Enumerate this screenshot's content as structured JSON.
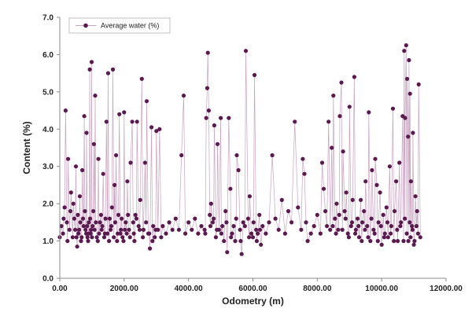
{
  "colors": {
    "series": "#5b1a4f",
    "series_line": "#c9a3c1",
    "axis": "#8c8c8c",
    "text": "#222222"
  },
  "chart_data": {
    "type": "scatter",
    "title": "",
    "xlabel": "Odometry (m)",
    "ylabel": "Content (%)",
    "xlim": [
      0,
      12000
    ],
    "ylim": [
      0,
      7
    ],
    "x_ticks": [
      "0.00",
      "2000.00",
      "4000.00",
      "6000.00",
      "8000.00",
      "10000.00",
      "12000.00"
    ],
    "y_ticks": [
      "0.0",
      "1.0",
      "2.0",
      "3.0",
      "4.0",
      "5.0",
      "6.0",
      "7.0"
    ],
    "grid": false,
    "legend_position": "top-left",
    "series": [
      {
        "name": "Average water (%)",
        "marker": "circle",
        "connected": true,
        "points": [
          [
            0,
            1.1
          ],
          [
            50,
            1.4
          ],
          [
            100,
            1.2
          ],
          [
            150,
            1.9
          ],
          [
            180,
            4.5
          ],
          [
            220,
            1.5
          ],
          [
            260,
            3.2
          ],
          [
            300,
            1.3
          ],
          [
            350,
            2.3
          ],
          [
            400,
            1.1
          ],
          [
            450,
            1.6
          ],
          [
            500,
            3.0
          ],
          [
            540,
            0.85
          ],
          [
            580,
            1.2
          ],
          [
            620,
            2.2
          ],
          [
            660,
            1.0
          ],
          [
            700,
            2.9
          ],
          [
            740,
            1.4
          ],
          [
            760,
            4.35
          ],
          [
            780,
            1.8
          ],
          [
            800,
            1.3
          ],
          [
            830,
            3.9
          ],
          [
            860,
            1.1
          ],
          [
            900,
            1.5
          ],
          [
            930,
            5.6
          ],
          [
            960,
            1.2
          ],
          [
            990,
            5.8
          ],
          [
            1020,
            1.4
          ],
          [
            1060,
            3.6
          ],
          [
            1100,
            4.9
          ],
          [
            1150,
            1.1
          ],
          [
            1200,
            3.2
          ],
          [
            1250,
            1.5
          ],
          [
            1300,
            1.3
          ],
          [
            1350,
            2.8
          ],
          [
            1400,
            1.2
          ],
          [
            1450,
            4.2
          ],
          [
            1500,
            5.5
          ],
          [
            1550,
            1.6
          ],
          [
            1600,
            1.4
          ],
          [
            1650,
            5.6
          ],
          [
            1700,
            2.5
          ],
          [
            1750,
            3.3
          ],
          [
            1800,
            1.2
          ],
          [
            1850,
            4.4
          ],
          [
            1900,
            1.3
          ],
          [
            1950,
            1.1
          ],
          [
            2000,
            4.45
          ],
          [
            2050,
            1.5
          ],
          [
            2100,
            2.6
          ],
          [
            2150,
            1.3
          ],
          [
            2200,
            3.1
          ],
          [
            2250,
            4.2
          ],
          [
            2300,
            1.2
          ],
          [
            2350,
            1.7
          ],
          [
            2400,
            4.2
          ],
          [
            2450,
            1.4
          ],
          [
            2500,
            2.1
          ],
          [
            2550,
            5.35
          ],
          [
            2600,
            1.3
          ],
          [
            2650,
            3.1
          ],
          [
            2700,
            4.75
          ],
          [
            2750,
            1.2
          ],
          [
            2800,
            0.8
          ],
          [
            2850,
            4.05
          ],
          [
            2900,
            1.4
          ],
          [
            2950,
            1.1
          ],
          [
            3000,
            3.95
          ],
          [
            3050,
            1.3
          ],
          [
            3100,
            4.0
          ],
          [
            3200,
            1.4
          ],
          [
            3300,
            1.2
          ],
          [
            3400,
            1.5
          ],
          [
            3500,
            1.3
          ],
          [
            3600,
            1.6
          ],
          [
            3700,
            1.3
          ],
          [
            3780,
            3.3
          ],
          [
            3850,
            4.9
          ],
          [
            3900,
            1.2
          ],
          [
            4000,
            1.5
          ],
          [
            4100,
            1.3
          ],
          [
            4200,
            1.6
          ],
          [
            4300,
            1.2
          ],
          [
            4400,
            1.4
          ],
          [
            4500,
            1.3
          ],
          [
            4550,
            4.3
          ],
          [
            4580,
            5.1
          ],
          [
            4600,
            6.05
          ],
          [
            4630,
            4.5
          ],
          [
            4660,
            1.7
          ],
          [
            4700,
            2.0
          ],
          [
            4750,
            1.5
          ],
          [
            4800,
            4.1
          ],
          [
            4850,
            1.1
          ],
          [
            4900,
            3.6
          ],
          [
            4950,
            1.3
          ],
          [
            5000,
            4.3
          ],
          [
            5050,
            1.4
          ],
          [
            5100,
            1.0
          ],
          [
            5150,
            1.8
          ],
          [
            5200,
            0.7
          ],
          [
            5250,
            4.3
          ],
          [
            5300,
            2.4
          ],
          [
            5350,
            1.2
          ],
          [
            5400,
            1.4
          ],
          [
            5450,
            1.0
          ],
          [
            5500,
            3.3
          ],
          [
            5550,
            2.9
          ],
          [
            5600,
            1.3
          ],
          [
            5650,
            0.65
          ],
          [
            5700,
            1.5
          ],
          [
            5780,
            6.1
          ],
          [
            5850,
            1.6
          ],
          [
            5900,
            2.2
          ],
          [
            5950,
            1.2
          ],
          [
            6000,
            1.1
          ],
          [
            6050,
            5.45
          ],
          [
            6100,
            1.3
          ],
          [
            6150,
            1.2
          ],
          [
            6200,
            1.7
          ],
          [
            6250,
            0.9
          ],
          [
            6300,
            1.4
          ],
          [
            6400,
            1.2
          ],
          [
            6500,
            1.5
          ],
          [
            6600,
            3.3
          ],
          [
            6700,
            1.6
          ],
          [
            6800,
            1.3
          ],
          [
            6900,
            2.1
          ],
          [
            7000,
            1.2
          ],
          [
            7100,
            1.8
          ],
          [
            7200,
            1.5
          ],
          [
            7300,
            4.2
          ],
          [
            7400,
            1.9
          ],
          [
            7500,
            1.3
          ],
          [
            7550,
            3.2
          ],
          [
            7600,
            2.8
          ],
          [
            7650,
            1.5
          ],
          [
            7700,
            1.0
          ],
          [
            7800,
            1.2
          ],
          [
            7900,
            1.4
          ],
          [
            8000,
            1.7
          ],
          [
            8100,
            1.2
          ],
          [
            8150,
            3.1
          ],
          [
            8200,
            2.4
          ],
          [
            8250,
            1.8
          ],
          [
            8300,
            1.4
          ],
          [
            8350,
            4.2
          ],
          [
            8400,
            1.3
          ],
          [
            8450,
            3.5
          ],
          [
            8500,
            4.9
          ],
          [
            8550,
            1.6
          ],
          [
            8600,
            2.0
          ],
          [
            8650,
            1.3
          ],
          [
            8700,
            4.35
          ],
          [
            8750,
            5.25
          ],
          [
            8800,
            3.4
          ],
          [
            8850,
            1.8
          ],
          [
            8900,
            2.3
          ],
          [
            8950,
            1.2
          ],
          [
            9000,
            4.6
          ],
          [
            9050,
            1.4
          ],
          [
            9100,
            2.1
          ],
          [
            9150,
            5.4
          ],
          [
            9200,
            1.3
          ],
          [
            9250,
            1.6
          ],
          [
            9300,
            1.1
          ],
          [
            9350,
            2.1
          ],
          [
            9400,
            1.5
          ],
          [
            9450,
            1.8
          ],
          [
            9500,
            2.6
          ],
          [
            9550,
            1.4
          ],
          [
            9600,
            4.45
          ],
          [
            9650,
            1.0
          ],
          [
            9700,
            2.9
          ],
          [
            9750,
            1.3
          ],
          [
            9800,
            3.2
          ],
          [
            9850,
            2.5
          ],
          [
            9900,
            1.5
          ],
          [
            9950,
            2.3
          ],
          [
            10000,
            0.9
          ],
          [
            10050,
            1.7
          ],
          [
            10100,
            1.2
          ],
          [
            10150,
            1.9
          ],
          [
            10200,
            1.1
          ],
          [
            10250,
            3.0
          ],
          [
            10300,
            1.4
          ],
          [
            10350,
            4.55
          ],
          [
            10400,
            1.8
          ],
          [
            10450,
            2.6
          ],
          [
            10500,
            1.0
          ],
          [
            10550,
            3.1
          ],
          [
            10600,
            1.5
          ],
          [
            10650,
            4.35
          ],
          [
            10700,
            6.1
          ],
          [
            10730,
            4.3
          ],
          [
            10760,
            6.25
          ],
          [
            10790,
            5.35
          ],
          [
            10820,
            3.8
          ],
          [
            10850,
            5.85
          ],
          [
            10880,
            4.95
          ],
          [
            10910,
            2.6
          ],
          [
            10940,
            1.4
          ],
          [
            10970,
            3.9
          ],
          [
            11000,
            0.9
          ],
          [
            11050,
            2.2
          ],
          [
            11100,
            1.8
          ],
          [
            11150,
            5.2
          ],
          [
            11200,
            1.1
          ],
          [
            120,
            1.6
          ],
          [
            240,
            1.0
          ],
          [
            330,
            1.8
          ],
          [
            420,
            2.0
          ],
          [
            480,
            1.3
          ],
          [
            520,
            1.1
          ],
          [
            560,
            1.7
          ],
          [
            600,
            1.3
          ],
          [
            640,
            1.5
          ],
          [
            680,
            1.1
          ],
          [
            720,
            1.6
          ],
          [
            820,
            1.2
          ],
          [
            850,
            1.4
          ],
          [
            880,
            1.0
          ],
          [
            910,
            1.2
          ],
          [
            940,
            1.6
          ],
          [
            970,
            1.3
          ],
          [
            1000,
            1.1
          ],
          [
            1040,
            1.8
          ],
          [
            1080,
            1.3
          ],
          [
            1120,
            1.5
          ],
          [
            1180,
            1.0
          ],
          [
            1220,
            1.2
          ],
          [
            1280,
            1.7
          ],
          [
            1320,
            1.4
          ],
          [
            1380,
            1.1
          ],
          [
            1420,
            1.6
          ],
          [
            1480,
            1.2
          ],
          [
            1530,
            1.0
          ],
          [
            1580,
            1.3
          ],
          [
            1620,
            1.9
          ],
          [
            1680,
            1.1
          ],
          [
            1720,
            1.5
          ],
          [
            1780,
            1.0
          ],
          [
            1820,
            1.7
          ],
          [
            1880,
            1.2
          ],
          [
            1920,
            1.6
          ],
          [
            1980,
            1.0
          ],
          [
            2020,
            1.3
          ],
          [
            2080,
            1.2
          ],
          [
            2120,
            1.7
          ],
          [
            2180,
            1.1
          ],
          [
            2280,
            1.5
          ],
          [
            2320,
            1.0
          ],
          [
            2380,
            1.6
          ],
          [
            2480,
            1.3
          ],
          [
            2580,
            1.1
          ],
          [
            2680,
            1.5
          ],
          [
            2780,
            1.2
          ],
          [
            2880,
            1.0
          ],
          [
            2980,
            1.3
          ],
          [
            3150,
            1.1
          ],
          [
            4520,
            1.2
          ],
          [
            4680,
            1.4
          ],
          [
            4780,
            1.6
          ],
          [
            4880,
            1.3
          ],
          [
            5020,
            1.2
          ],
          [
            5180,
            1.5
          ],
          [
            5320,
            1.1
          ],
          [
            5480,
            1.6
          ],
          [
            5620,
            1.0
          ],
          [
            5750,
            1.4
          ],
          [
            5880,
            1.1
          ],
          [
            6020,
            1.5
          ],
          [
            6120,
            1.0
          ],
          [
            6220,
            1.3
          ],
          [
            8480,
            1.4
          ],
          [
            8580,
            1.2
          ],
          [
            8680,
            1.7
          ],
          [
            8780,
            1.3
          ],
          [
            8880,
            1.6
          ],
          [
            8980,
            1.1
          ],
          [
            9080,
            1.5
          ],
          [
            9180,
            1.2
          ],
          [
            9280,
            1.4
          ],
          [
            9380,
            1.0
          ],
          [
            9480,
            1.3
          ],
          [
            9580,
            1.1
          ],
          [
            9680,
            1.6
          ],
          [
            9780,
            1.2
          ],
          [
            9880,
            1.0
          ],
          [
            9980,
            1.4
          ],
          [
            10080,
            1.1
          ],
          [
            10180,
            1.5
          ],
          [
            10280,
            1.2
          ],
          [
            10380,
            1.0
          ],
          [
            10480,
            1.3
          ],
          [
            10580,
            1.4
          ],
          [
            10680,
            1.0
          ],
          [
            10720,
            1.6
          ],
          [
            10780,
            1.2
          ],
          [
            10830,
            1.0
          ],
          [
            10870,
            1.5
          ],
          [
            10900,
            1.1
          ],
          [
            10960,
            1.3
          ],
          [
            11020,
            1.0
          ],
          [
            11080,
            1.4
          ],
          [
            11130,
            1.2
          ]
        ]
      }
    ]
  }
}
